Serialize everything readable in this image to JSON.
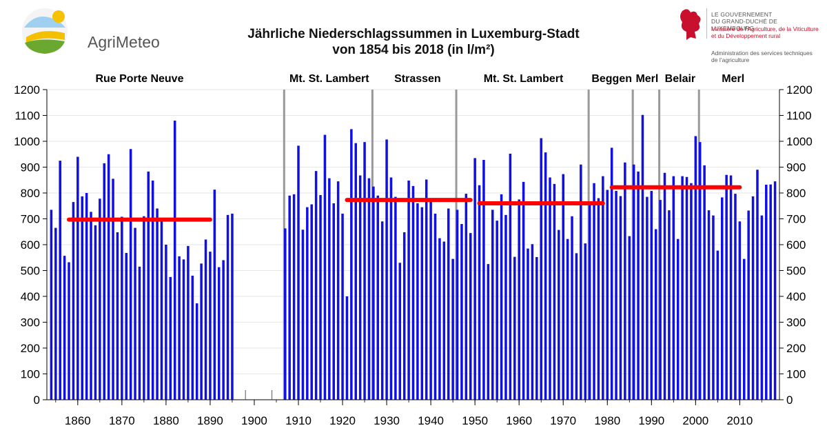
{
  "logo": {
    "name": "AgriMeteo"
  },
  "government": {
    "line1": "LE GOUVERNEMENT",
    "line2": "DU GRAND-DUCHÉ DE LUXEMBOURG",
    "line3": "Ministère de l’Agriculture, de la Viticulture",
    "line4": "et du Développement rural",
    "line5": "Administration des services techniques",
    "line6": "de l’agriculture"
  },
  "chart_data": {
    "type": "bar",
    "title_line1": "Jährliche Niederschlagssummen in Luxemburg-Stadt",
    "title_line2": "von 1854 bis 2018 (in l/m²)",
    "ylim": [
      0,
      1200
    ],
    "y_ticks": [
      "0",
      "100",
      "200",
      "300",
      "400",
      "500",
      "600",
      "700",
      "800",
      "900",
      "1000",
      "1100",
      "1200"
    ],
    "x_range": [
      1853,
      2019
    ],
    "x_ticks": [
      "1860",
      "1870",
      "1880",
      "1890",
      "1900",
      "1910",
      "1920",
      "1930",
      "1940",
      "1950",
      "1960",
      "1970",
      "1980",
      "1990",
      "2000",
      "2010"
    ],
    "bar_color": "#1010e0",
    "mean_color": "#ff0000",
    "station_change_color": "#999999",
    "series": [
      {
        "name": "Rue Porte Neuve",
        "years": [
          1854,
          1855,
          1856,
          1857,
          1858,
          1859,
          1860,
          1861,
          1862,
          1863,
          1864,
          1865,
          1866,
          1867,
          1868,
          1869,
          1870,
          1871,
          1872,
          1873,
          1874,
          1875,
          1876,
          1877,
          1878,
          1879,
          1880,
          1881,
          1882,
          1883,
          1884,
          1885,
          1886,
          1887,
          1888,
          1889,
          1890,
          1891,
          1892,
          1893,
          1894,
          1895
        ],
        "values": [
          735,
          665,
          925,
          557,
          532,
          765,
          940,
          787,
          800,
          727,
          675,
          778,
          915,
          950,
          855,
          648,
          708,
          568,
          970,
          665,
          515,
          710,
          883,
          848,
          740,
          698,
          600,
          475,
          1080,
          555,
          543,
          595,
          480,
          373,
          527,
          620,
          573,
          813,
          513,
          540,
          715,
          720
        ]
      },
      {
        "name": "Mt. St. Lambert",
        "years": [
          1907,
          1908,
          1909,
          1910,
          1911,
          1912,
          1913,
          1914,
          1915,
          1916,
          1917,
          1918,
          1919,
          1920,
          1921,
          1922,
          1923,
          1924,
          1925,
          1926,
          1927
        ],
        "values": [
          663,
          790,
          795,
          983,
          658,
          745,
          756,
          885,
          792,
          1025,
          857,
          760,
          845,
          720,
          400,
          1047,
          993,
          868,
          997,
          857,
          825
        ]
      },
      {
        "name": "Strassen",
        "years": [
          1928,
          1929,
          1930,
          1931,
          1932,
          1933,
          1934,
          1935,
          1936,
          1937,
          1938,
          1939,
          1940,
          1941,
          1942,
          1943,
          1944,
          1945,
          1946
        ],
        "values": [
          790,
          690,
          1007,
          860,
          785,
          530,
          648,
          848,
          827,
          760,
          745,
          852,
          780,
          720,
          625,
          612,
          740,
          545,
          735
        ]
      },
      {
        "name": "Mt. St. Lambert",
        "years": [
          1947,
          1948,
          1949,
          1950,
          1951,
          1952,
          1953,
          1954,
          1955,
          1956,
          1957,
          1958,
          1959,
          1960,
          1961,
          1962,
          1963,
          1964,
          1965,
          1966,
          1967,
          1968,
          1969,
          1970,
          1971,
          1972,
          1973,
          1974,
          1975,
          1976
        ],
        "values": [
          680,
          797,
          645,
          935,
          830,
          928,
          525,
          735,
          693,
          795,
          715,
          952,
          553,
          775,
          843,
          585,
          602,
          552,
          1012,
          957,
          860,
          835,
          657,
          873,
          622,
          710,
          567,
          910,
          605,
          760
        ]
      },
      {
        "name": "Beggen",
        "years": [
          1977,
          1978,
          1979,
          1980,
          1981,
          1982,
          1983,
          1984,
          1985,
          1986
        ],
        "values": [
          838,
          780,
          865,
          812,
          975,
          808,
          788,
          918,
          633,
          910
        ]
      },
      {
        "name": "Merl",
        "years": [
          1987,
          1988,
          1989,
          1990,
          1991,
          1992
        ],
        "values": [
          883,
          1102,
          785,
          808,
          660,
          773
        ]
      },
      {
        "name": "Belair",
        "years": [
          1993,
          1994,
          1995,
          1996,
          1997,
          1998,
          1999,
          2000,
          2001
        ],
        "values": [
          878,
          733,
          865,
          622,
          865,
          862,
          838,
          1020,
          997
        ]
      },
      {
        "name": "Merl",
        "years": [
          2002,
          2003,
          2004,
          2005,
          2006,
          2007,
          2008,
          2009,
          2010,
          2011,
          2012,
          2013,
          2014,
          2015,
          2016,
          2017,
          2018
        ],
        "values": [
          907,
          733,
          713,
          577,
          783,
          870,
          868,
          797,
          690,
          545,
          732,
          787,
          890,
          713,
          832,
          833,
          845
        ]
      }
    ],
    "station_labels": [
      {
        "text": "Rue Porte Neuve",
        "year": 1874
      },
      {
        "text": "Mt. St. Lambert",
        "year": 1917
      },
      {
        "text": "Strassen",
        "year": 1937
      },
      {
        "text": "Mt. St. Lambert",
        "year": 1961
      },
      {
        "text": "Beggen",
        "year": 1981
      },
      {
        "text": "Merl",
        "year": 1989
      },
      {
        "text": "Belair",
        "year": 1996.5
      },
      {
        "text": "Merl",
        "year": 2008.5
      }
    ],
    "station_changes": [
      1907,
      1927,
      1946,
      1976,
      1986,
      1992,
      2001
    ],
    "means": [
      {
        "from": 1858,
        "to": 1890,
        "value": 697
      },
      {
        "from": 1921,
        "to": 1949,
        "value": 773
      },
      {
        "from": 1951,
        "to": 1979,
        "value": 760
      },
      {
        "from": 1981,
        "to": 2010,
        "value": 822
      }
    ]
  }
}
